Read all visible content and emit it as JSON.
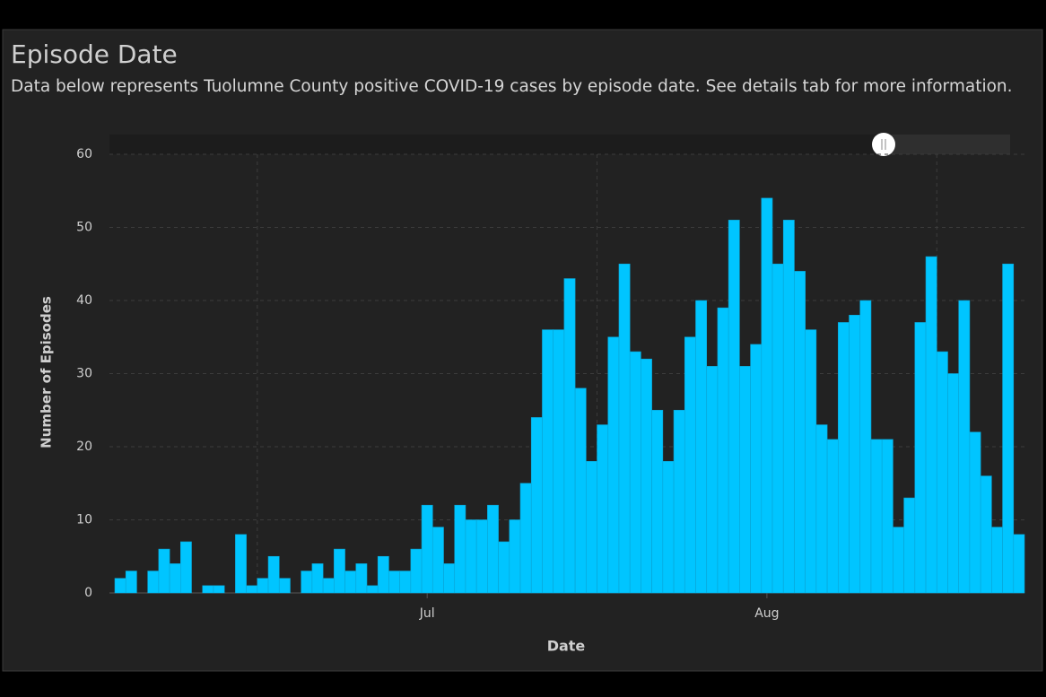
{
  "title": "Episode Date",
  "subtitle": "Data below represents Tuolumne County positive COVID-19 cases by episode date. See details tab for more information.",
  "chart_data": {
    "type": "bar",
    "x_label": "Date",
    "y_label": "Number of Episodes",
    "categories": [
      null,
      null,
      null,
      null,
      null,
      null,
      null,
      null,
      null,
      null,
      null,
      null,
      null,
      null,
      null,
      null,
      null,
      null,
      null,
      null,
      null,
      null,
      null,
      null,
      null,
      null,
      null,
      null,
      "Jul",
      null,
      null,
      null,
      null,
      null,
      null,
      null,
      null,
      null,
      null,
      null,
      null,
      null,
      null,
      null,
      null,
      null,
      null,
      null,
      null,
      null,
      null,
      null,
      null,
      null,
      null,
      null,
      null,
      null,
      null,
      "Aug",
      null,
      null,
      null,
      null,
      null,
      null,
      null,
      null,
      null,
      null,
      null,
      null,
      null,
      null,
      null,
      null,
      null,
      null,
      null,
      null,
      null,
      null,
      null
    ],
    "values": [
      2,
      3,
      0,
      3,
      6,
      4,
      7,
      0,
      1,
      1,
      0,
      8,
      1,
      2,
      5,
      2,
      0,
      3,
      4,
      2,
      6,
      3,
      4,
      1,
      5,
      3,
      3,
      6,
      12,
      9,
      4,
      12,
      10,
      10,
      12,
      7,
      10,
      15,
      24,
      36,
      36,
      43,
      28,
      18,
      23,
      35,
      45,
      33,
      32,
      25,
      18,
      25,
      35,
      40,
      31,
      39,
      51,
      31,
      34,
      54,
      45,
      51,
      44,
      36,
      23,
      21,
      37,
      38,
      40,
      21,
      21,
      9,
      13,
      37,
      46,
      33,
      30,
      40,
      22,
      16,
      9,
      45,
      8
    ],
    "color": "#00c5ff",
    "ylim": [
      0,
      60
    ],
    "yticks": [
      0,
      10,
      20,
      30,
      40,
      50,
      60
    ],
    "grid": true
  }
}
